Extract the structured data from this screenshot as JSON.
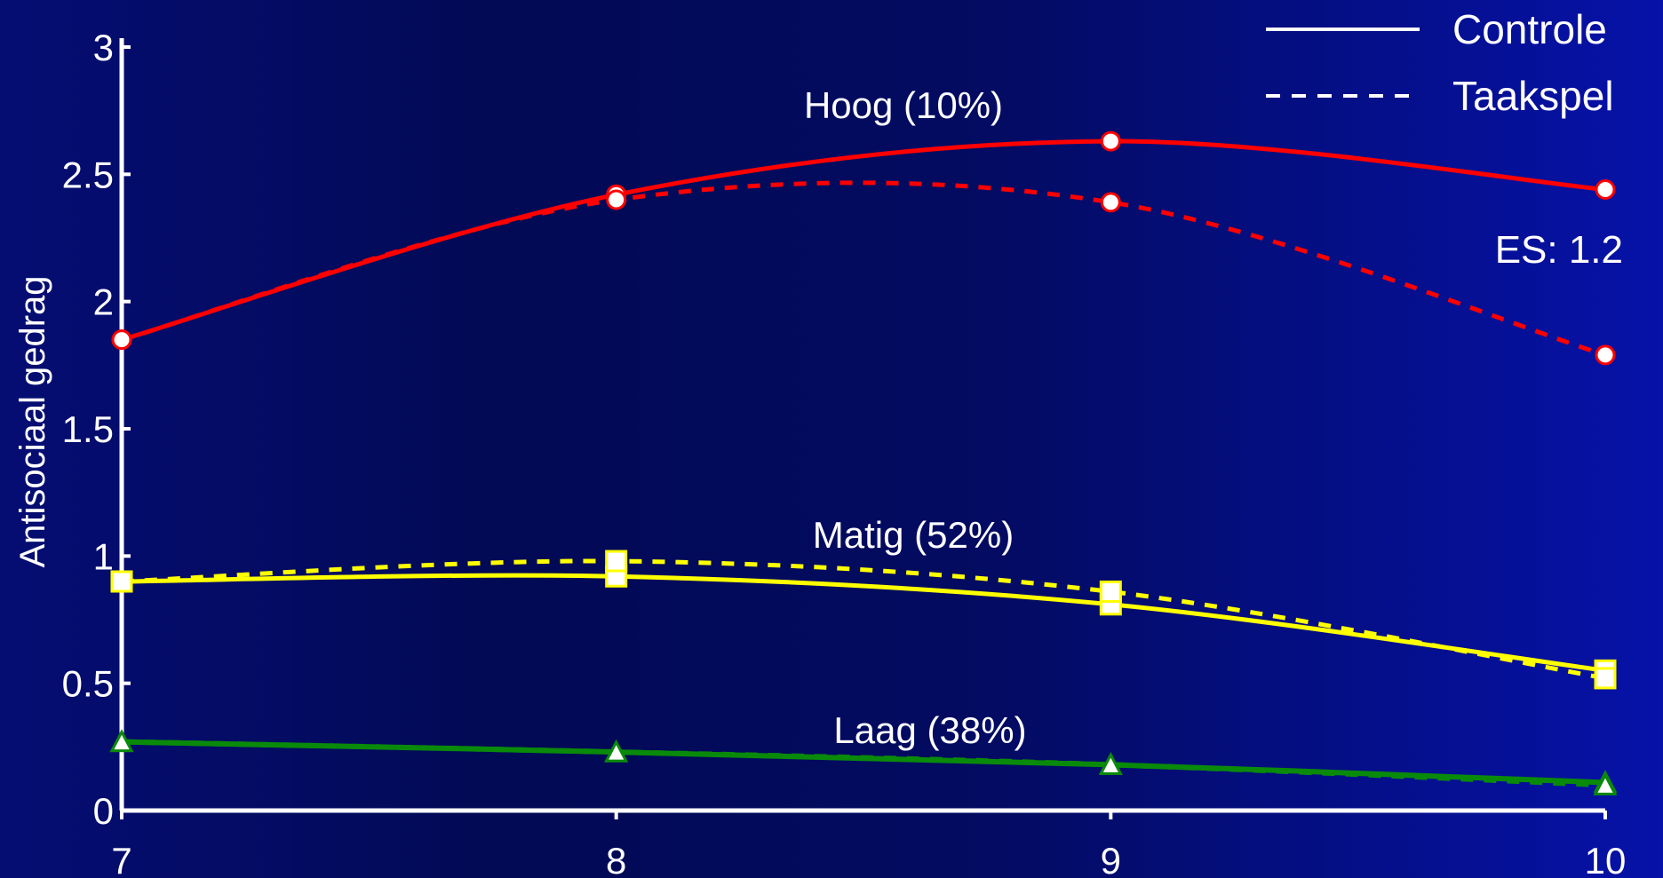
{
  "chart_data": {
    "type": "line",
    "ylabel": "Antisociaal gedrag",
    "xlabel": "",
    "x_ticks": [
      "7",
      "8",
      "9",
      "10"
    ],
    "y_ticks": [
      "0",
      "0.5",
      "1",
      "1.5",
      "2",
      "2.5",
      "3"
    ],
    "x": [
      7,
      8,
      9,
      10
    ],
    "xlim": [
      7,
      10
    ],
    "ylim": [
      0,
      3
    ],
    "legend": {
      "position": "top-right",
      "entries": [
        {
          "label": "Controle",
          "style": "solid"
        },
        {
          "label": "Taakspel",
          "style": "dashed"
        }
      ]
    },
    "groups": [
      {
        "label": "Hoog (10%)",
        "color": "#ff0000",
        "marker": "circle"
      },
      {
        "label": "Matig (52%)",
        "color": "#ffff00",
        "marker": "square"
      },
      {
        "label": "Laag (38%)",
        "color": "#0a8a0a",
        "marker": "triangle"
      }
    ],
    "series": [
      {
        "group": 0,
        "condition": "Controle",
        "values": [
          1.85,
          2.42,
          2.63,
          2.44
        ]
      },
      {
        "group": 0,
        "condition": "Taakspel",
        "values": [
          1.85,
          2.4,
          2.39,
          1.79
        ]
      },
      {
        "group": 1,
        "condition": "Controle",
        "values": [
          0.9,
          0.92,
          0.81,
          0.55
        ]
      },
      {
        "group": 1,
        "condition": "Taakspel",
        "values": [
          0.9,
          0.98,
          0.86,
          0.52
        ]
      },
      {
        "group": 2,
        "condition": "Controle",
        "values": [
          0.27,
          0.23,
          0.18,
          0.11
        ]
      },
      {
        "group": 2,
        "condition": "Taakspel",
        "values": [
          0.27,
          0.23,
          0.18,
          0.1
        ]
      }
    ],
    "annotations": [
      {
        "text": "ES: 1.2",
        "group": 0
      }
    ]
  }
}
